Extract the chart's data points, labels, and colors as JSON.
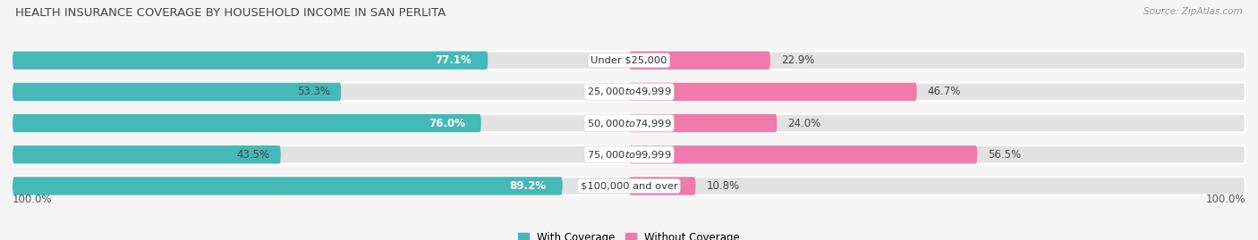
{
  "title": "HEALTH INSURANCE COVERAGE BY HOUSEHOLD INCOME IN SAN PERLITA",
  "source": "Source: ZipAtlas.com",
  "categories": [
    "Under $25,000",
    "$25,000 to $49,999",
    "$50,000 to $74,999",
    "$75,000 to $99,999",
    "$100,000 and over"
  ],
  "with_coverage": [
    77.1,
    53.3,
    76.0,
    43.5,
    89.2
  ],
  "without_coverage": [
    22.9,
    46.7,
    24.0,
    56.5,
    10.8
  ],
  "color_with": "#45b8b8",
  "color_without": "#f07aaa",
  "color_track": "#e2e2e2",
  "background_color": "#f5f5f5",
  "legend_with": "With Coverage",
  "legend_without": "Without Coverage",
  "left_label": "100.0%",
  "right_label": "100.0%",
  "title_fontsize": 9.5,
  "label_fontsize": 8.5,
  "source_fontsize": 7.5,
  "bar_height": 0.58,
  "xlim": 115
}
